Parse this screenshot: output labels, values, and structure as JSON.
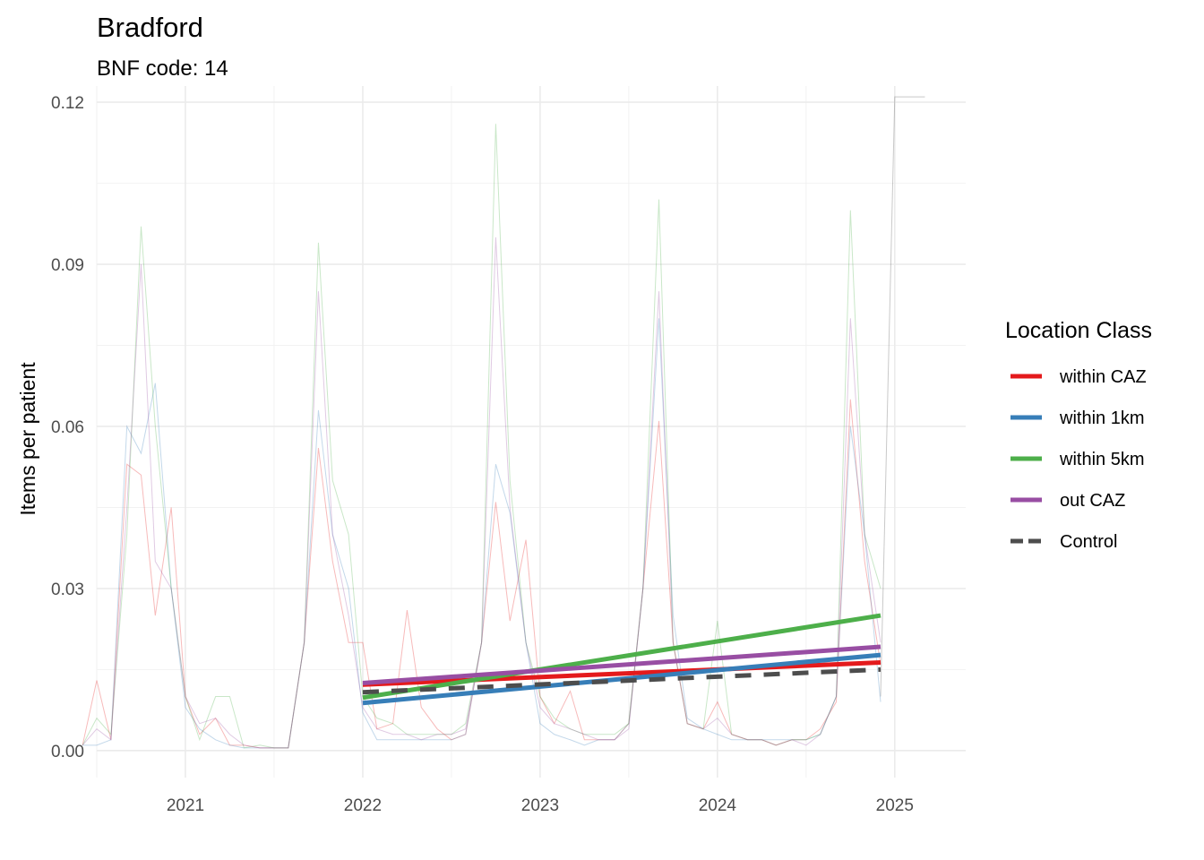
{
  "chart_data": {
    "type": "line",
    "title": "Bradford",
    "subtitle": "BNF code: 14",
    "xlabel": "",
    "ylabel": "Items per patient",
    "xlim": [
      2020.5,
      2025.4
    ],
    "ylim": [
      -0.005,
      0.123
    ],
    "x_ticks": [
      2021,
      2022,
      2023,
      2024,
      2025
    ],
    "x_tick_labels": [
      "2021",
      "2022",
      "2023",
      "2024",
      "2025"
    ],
    "y_ticks": [
      0.0,
      0.03,
      0.06,
      0.09,
      0.12
    ],
    "y_tick_labels": [
      "0.00",
      "0.03",
      "0.06",
      "0.09",
      "0.12"
    ],
    "grid": true,
    "legend": {
      "title": "Location Class",
      "position": "right",
      "entries": [
        {
          "label": "within CAZ",
          "color": "#E41A1C",
          "dash": false
        },
        {
          "label": "within 1km",
          "color": "#377EB8",
          "dash": false
        },
        {
          "label": "within 5km",
          "color": "#4DAF4A",
          "dash": false
        },
        {
          "label": "out CAZ",
          "color": "#984EA3",
          "dash": false
        },
        {
          "label": "Control",
          "color": "#4D4D4D",
          "dash": true
        }
      ]
    },
    "raw_series": [
      {
        "name": "within CAZ",
        "color": "#E41A1C",
        "x": [
          2020.42,
          2020.5,
          2020.58,
          2020.67,
          2020.75,
          2020.83,
          2020.92,
          2021.0,
          2021.08,
          2021.17,
          2021.25,
          2021.33,
          2021.42,
          2021.5,
          2021.58,
          2021.67,
          2021.75,
          2021.83,
          2021.92,
          2022.0,
          2022.08,
          2022.17,
          2022.25,
          2022.33,
          2022.42,
          2022.5,
          2022.58,
          2022.67,
          2022.75,
          2022.83,
          2022.92,
          2023.0,
          2023.08,
          2023.17,
          2023.25,
          2023.33,
          2023.42,
          2023.5,
          2023.58,
          2023.67,
          2023.75,
          2023.83,
          2023.92,
          2024.0,
          2024.08,
          2024.17,
          2024.25,
          2024.33,
          2024.42,
          2024.5,
          2024.58,
          2024.67,
          2024.75,
          2024.83,
          2024.92
        ],
        "y": [
          0.001,
          0.013,
          0.002,
          0.053,
          0.051,
          0.025,
          0.045,
          0.01,
          0.003,
          0.006,
          0.001,
          0.001,
          0.0005,
          0.0005,
          0.0005,
          0.02,
          0.056,
          0.035,
          0.02,
          0.02,
          0.004,
          0.005,
          0.026,
          0.008,
          0.004,
          0.002,
          0.003,
          0.02,
          0.046,
          0.024,
          0.039,
          0.01,
          0.005,
          0.011,
          0.002,
          0.002,
          0.002,
          0.005,
          0.03,
          0.061,
          0.02,
          0.005,
          0.004,
          0.009,
          0.003,
          0.002,
          0.002,
          0.001,
          0.002,
          0.002,
          0.004,
          0.009,
          0.065,
          0.035,
          0.016
        ]
      },
      {
        "name": "within 1km",
        "color": "#377EB8",
        "x": [
          2020.42,
          2020.5,
          2020.58,
          2020.67,
          2020.75,
          2020.83,
          2020.92,
          2021.0,
          2021.08,
          2021.17,
          2021.25,
          2021.33,
          2021.42,
          2021.5,
          2021.58,
          2021.67,
          2021.75,
          2021.83,
          2021.92,
          2022.0,
          2022.08,
          2022.17,
          2022.25,
          2022.33,
          2022.42,
          2022.5,
          2022.58,
          2022.67,
          2022.75,
          2022.83,
          2022.92,
          2023.0,
          2023.08,
          2023.17,
          2023.25,
          2023.33,
          2023.42,
          2023.5,
          2023.58,
          2023.67,
          2023.75,
          2023.83,
          2023.92,
          2024.0,
          2024.08,
          2024.17,
          2024.25,
          2024.33,
          2024.42,
          2024.5,
          2024.58,
          2024.67,
          2024.75,
          2024.83,
          2024.92
        ],
        "y": [
          0.001,
          0.001,
          0.002,
          0.06,
          0.055,
          0.068,
          0.03,
          0.008,
          0.004,
          0.002,
          0.001,
          0.0005,
          0.0005,
          0.0005,
          0.0005,
          0.02,
          0.063,
          0.04,
          0.03,
          0.007,
          0.002,
          0.002,
          0.002,
          0.002,
          0.002,
          0.002,
          0.003,
          0.02,
          0.053,
          0.044,
          0.02,
          0.005,
          0.003,
          0.002,
          0.001,
          0.002,
          0.002,
          0.005,
          0.03,
          0.08,
          0.025,
          0.006,
          0.004,
          0.003,
          0.002,
          0.002,
          0.002,
          0.002,
          0.002,
          0.002,
          0.003,
          0.01,
          0.06,
          0.04,
          0.009
        ]
      },
      {
        "name": "within 5km",
        "color": "#4DAF4A",
        "x": [
          2020.42,
          2020.5,
          2020.58,
          2020.67,
          2020.75,
          2020.83,
          2020.92,
          2021.0,
          2021.08,
          2021.17,
          2021.25,
          2021.33,
          2021.42,
          2021.5,
          2021.58,
          2021.67,
          2021.75,
          2021.83,
          2021.92,
          2022.0,
          2022.08,
          2022.17,
          2022.25,
          2022.33,
          2022.42,
          2022.5,
          2022.58,
          2022.67,
          2022.75,
          2022.83,
          2022.92,
          2023.0,
          2023.08,
          2023.17,
          2023.25,
          2023.33,
          2023.42,
          2023.5,
          2023.58,
          2023.67,
          2023.75,
          2023.83,
          2023.92,
          2024.0,
          2024.08,
          2024.17,
          2024.25,
          2024.33,
          2024.42,
          2024.5,
          2024.58,
          2024.67,
          2024.75,
          2024.83,
          2024.92
        ],
        "y": [
          0.001,
          0.006,
          0.003,
          0.04,
          0.097,
          0.06,
          0.03,
          0.01,
          0.002,
          0.01,
          0.01,
          0.0005,
          0.001,
          0.0005,
          0.0005,
          0.02,
          0.094,
          0.05,
          0.04,
          0.01,
          0.006,
          0.005,
          0.003,
          0.003,
          0.003,
          0.003,
          0.005,
          0.02,
          0.116,
          0.05,
          0.02,
          0.01,
          0.006,
          0.004,
          0.003,
          0.003,
          0.003,
          0.005,
          0.03,
          0.102,
          0.02,
          0.005,
          0.004,
          0.024,
          0.003,
          0.002,
          0.002,
          0.001,
          0.002,
          0.002,
          0.003,
          0.01,
          0.1,
          0.04,
          0.03
        ]
      },
      {
        "name": "out CAZ",
        "color": "#984EA3",
        "x": [
          2020.42,
          2020.5,
          2020.58,
          2020.67,
          2020.75,
          2020.83,
          2020.92,
          2021.0,
          2021.08,
          2021.17,
          2021.25,
          2021.33,
          2021.42,
          2021.5,
          2021.58,
          2021.67,
          2021.75,
          2021.83,
          2021.92,
          2022.0,
          2022.08,
          2022.17,
          2022.25,
          2022.33,
          2022.42,
          2022.5,
          2022.58,
          2022.67,
          2022.75,
          2022.83,
          2022.92,
          2023.0,
          2023.08,
          2023.17,
          2023.25,
          2023.33,
          2023.42,
          2023.5,
          2023.58,
          2023.67,
          2023.75,
          2023.83,
          2023.92,
          2024.0,
          2024.08,
          2024.17,
          2024.25,
          2024.33,
          2024.42,
          2024.5,
          2024.58,
          2024.67,
          2024.75,
          2024.83,
          2024.92
        ],
        "y": [
          0.001,
          0.004,
          0.002,
          0.045,
          0.09,
          0.035,
          0.03,
          0.01,
          0.005,
          0.006,
          0.003,
          0.001,
          0.0005,
          0.0005,
          0.0005,
          0.02,
          0.085,
          0.04,
          0.025,
          0.008,
          0.004,
          0.003,
          0.003,
          0.002,
          0.003,
          0.003,
          0.004,
          0.02,
          0.095,
          0.045,
          0.02,
          0.008,
          0.005,
          0.004,
          0.003,
          0.002,
          0.002,
          0.004,
          0.03,
          0.085,
          0.02,
          0.005,
          0.004,
          0.006,
          0.003,
          0.002,
          0.002,
          0.001,
          0.002,
          0.001,
          0.003,
          0.01,
          0.08,
          0.04,
          0.02
        ]
      },
      {
        "name": "Control",
        "color": "#4D4D4D",
        "x": [
          2024.92,
          2025.0,
          2025.08,
          2025.17
        ],
        "y": [
          0.01,
          0.121,
          0.121,
          0.121
        ]
      }
    ],
    "trend_series": [
      {
        "name": "within CAZ",
        "color": "#E41A1C",
        "dash": false,
        "x": [
          2022.0,
          2024.92
        ],
        "y": [
          0.0122,
          0.0163
        ]
      },
      {
        "name": "within 1km",
        "color": "#377EB8",
        "dash": false,
        "x": [
          2022.0,
          2024.92
        ],
        "y": [
          0.0088,
          0.0177
        ]
      },
      {
        "name": "within 5km",
        "color": "#4DAF4A",
        "dash": false,
        "x": [
          2022.0,
          2024.92
        ],
        "y": [
          0.0098,
          0.025
        ]
      },
      {
        "name": "out CAZ",
        "color": "#984EA3",
        "dash": false,
        "x": [
          2022.0,
          2024.92
        ],
        "y": [
          0.0125,
          0.0192
        ]
      },
      {
        "name": "Control",
        "color": "#4D4D4D",
        "dash": true,
        "x": [
          2022.0,
          2024.92
        ],
        "y": [
          0.0108,
          0.015
        ]
      }
    ]
  }
}
